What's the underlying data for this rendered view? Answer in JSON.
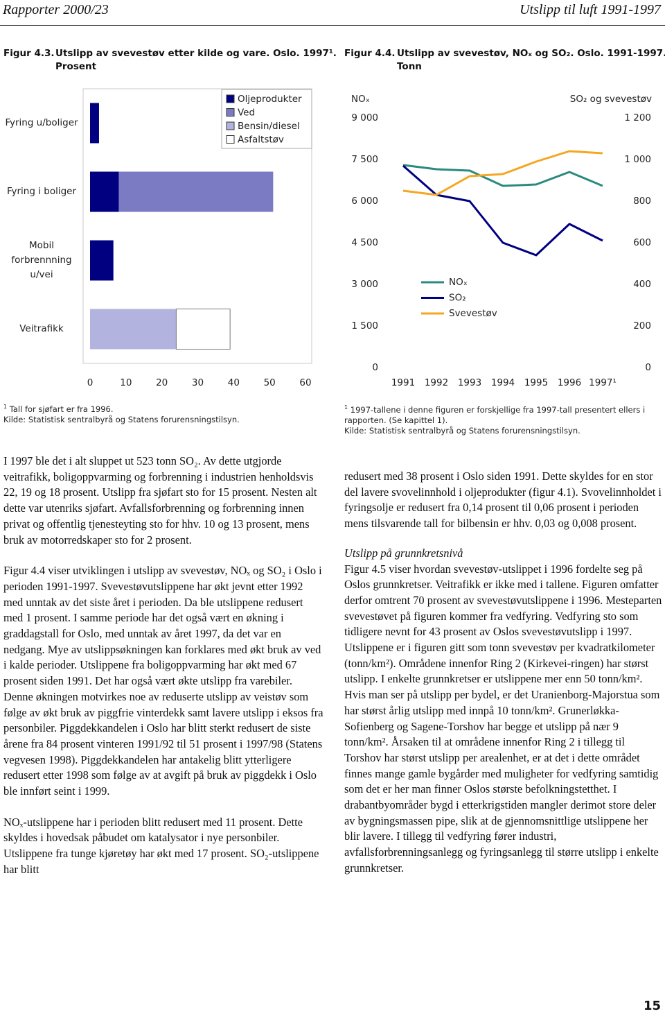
{
  "header": {
    "left": "Rapporter 2000/23",
    "right": "Utslipp til luft 1991-1997"
  },
  "chart_data": [
    {
      "type": "hbar",
      "figure": "Figur 4.3.",
      "title": [
        "Utslipp av svevestøv etter kilde og vare. Oslo. 1997¹.",
        "Prosent"
      ],
      "categories": [
        "Fyring u/boliger",
        "Fyring i boliger",
        "Mobil forbrennning u/vei",
        "Veitrafikk"
      ],
      "series": [
        {
          "name": "Oljeprodukter",
          "color": "#000080",
          "values": [
            2.5,
            8,
            6.5,
            null
          ]
        },
        {
          "name": "Ved",
          "color": "#7b7bc4",
          "values": [
            null,
            43,
            null,
            null
          ]
        },
        {
          "name": "Bensin/diesel",
          "color": "#b3b3e0",
          "values": [
            null,
            null,
            null,
            24
          ]
        },
        {
          "name": "Asfaltstøv",
          "color": "#ffffff",
          "values": [
            null,
            null,
            null,
            15
          ]
        }
      ],
      "xlim": [
        0,
        60
      ],
      "xticks": [
        0,
        10,
        20,
        30,
        40,
        50,
        60
      ],
      "footnote": {
        "mark": "1",
        "text": "Tall for sjøfart er fra 1996."
      },
      "source": "Kilde: Statistisk sentralbyrå og Statens forurensningstilsyn."
    },
    {
      "type": "line",
      "figure": "Figur 4.4.",
      "title": [
        "Utslipp av svevestøv, NOₓ og SO₂. Oslo. 1991-1997.",
        "Tonn"
      ],
      "categories": [
        "1991",
        "1992",
        "1993",
        "1994",
        "1995",
        "1996",
        "1997¹"
      ],
      "y_label": "NOₓ",
      "y2_label": "SO₂ og svevestøv",
      "series": [
        {
          "name": "NOₓ",
          "color": "#2a8a80",
          "values": [
            7300,
            7150,
            7100,
            6550,
            6600,
            7050,
            6550
          ]
        },
        {
          "name": "SO₂",
          "color": "#000080",
          "axis": "y2",
          "values": [
            970,
            830,
            800,
            600,
            540,
            690,
            610
          ]
        },
        {
          "name": "Svevestøv",
          "color": "#f5a623",
          "axis": "y2",
          "values": [
            850,
            830,
            920,
            930,
            990,
            1040,
            1030
          ]
        }
      ],
      "ylim": [
        0,
        9000
      ],
      "yticks": [
        0,
        {
          "value": 1500,
          "label": "1 500"
        },
        {
          "value": 3000,
          "label": "3 000"
        },
        {
          "value": 4500,
          "label": "4 500"
        },
        {
          "value": 6000,
          "label": "6 000"
        },
        {
          "value": 7500,
          "label": "7 500"
        },
        {
          "value": 9000,
          "label": "9 000"
        }
      ],
      "y2lim": [
        0,
        1200
      ],
      "y2ticks": [
        0,
        200,
        400,
        600,
        800,
        {
          "value": 1000,
          "label": "1 000"
        },
        {
          "value": 1200,
          "label": "1 200"
        }
      ],
      "footnote": {
        "mark": "1",
        "text": "1997-tallene i denne figuren er forskjellige fra 1997-tall presentert ellers i rapporten. (Se kapittel 1)."
      },
      "source": "Kilde: Statistisk sentralbyrå og Statens forurensningstilsyn."
    }
  ],
  "body": {
    "left": [
      "I 1997 ble det i alt sluppet ut 523 tonn SO₂. Av dette utgjorde veitrafikk, boligoppvarming og forbrenning i industrien henholdsvis 22, 19 og 18 prosent. Utslipp fra sjøfart sto for 15 prosent. Nesten alt dette var utenriks sjøfart. Avfallsforbrenning og forbrenning innen privat og offentlig tjenesteyting sto for hhv. 10 og 13 prosent, mens bruk av motorredskaper sto for 2 prosent.",
      "Figur 4.4 viser utviklingen i utslipp av svevestøv, NOₓ og SO₂ i Oslo i perioden 1991-1997. Svevestøvut­slippene har økt jevnt etter 1992 med unntak av det siste året i perioden. Da ble utslippene redusert med 1 prosent. I samme periode har det også vært en økning i graddagstall for Oslo, med unntak av året 1997, da det var en nedgang. Mye av utslippsøkningen kan forklares med økt bruk av ved i kalde perioder. Utslippene fra boligoppvarming har økt med 67 prosent siden 1991. Det har også vært økte utslipp fra varebiler. Denne økningen motvirkes noe av reduserte utslipp av veistøv som følge av økt bruk av piggfrie vinterdekk samt lavere utslipp i eksos fra personbiler. Piggdekkandelen i Oslo har blitt sterkt redusert de siste årene fra 84 prosent vinteren 1991/92 til 51 prosent i 1997/98 (Statens vegvesen 1998). Piggdekkandelen har antakelig blitt ytterligere redusert etter 1998 som følge av at avgift på bruk av piggdekk i Oslo ble innført seint i 1999.",
      "NOₓ-utslippene har i perioden blitt redusert med 11 prosent. Dette skyldes i hovedsak påbudet om kata­lysator i nye personbiler. Utslippene fra tunge kjøretøy har økt med 17 prosent. SO₂-utslippene har blitt"
    ],
    "right": [
      "redusert med 38 prosent i Oslo siden 1991. Dette skyldes for en stor del lavere svovelinnhold i olje­produkter (figur 4.1). Svovelinnholdet i fyringsolje er redusert fra 0,14 prosent til 0,06 prosent i perioden mens tilsvarende tall for bilbensin er hhv. 0,03 og 0,008 prosent.",
      "Utslipp på grunnkretsnivå",
      "Figur 4.5 viser hvordan svevestøv-utslippet i 1996 for­delte seg på Oslos grunnkretser. Veitrafikk er ikke med i tallene. Figuren omfatter derfor omtrent 70 prosent av svevestøvutslippene i 1996. Mesteparten svevestøvet på figuren kommer fra vedfyring. Vedfyring sto som tidligere nevnt for 43 prosent av Oslos svevestøvutslipp i 1997. Utslippene er i figuren gitt som tonn svevestøv per kvadratkilometer (tonn/km²). Områdene innenfor Ring 2 (Kirkevei-ringen) har størst utslipp. I enkelte grunnkretser er utslippene mer enn 50 tonn/km². Hvis man ser på utslipp per bydel, er det Uranienborg-Majorstua som har størst årlig utslipp med innpå 10 tonn/km². Grunerløkka-Sofienberg og Sagene-Torshov har begge et utslipp på nær 9 tonn/km². Årsaken til at områdene innenfor Ring 2 i tillegg til Torshov har størst utslipp per arealenhet, er at det i dette området finnes mange gamle bygårder med muligheter for vedfyring samtidig som det er her man finner Oslos største befolkningstetthet. I drabantbyområder bygd i etterkrigstiden mangler derimot store deler av bygningsmassen pipe, slik at de gjennomsnittlige utslippene her blir lavere. I tillegg til vedfyring fører industri, avfallsforbrenningsanlegg og fyringsanlegg til større utslipp i enkelte grunnkretser."
    ]
  },
  "page_number": "15"
}
